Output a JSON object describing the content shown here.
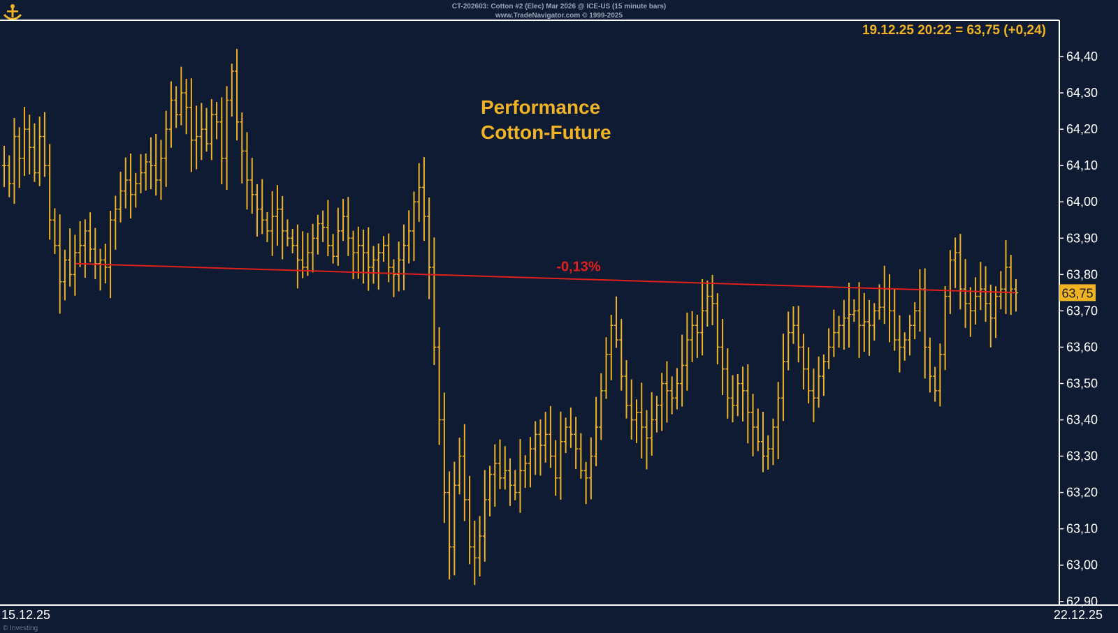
{
  "header": {
    "symbol_line": "CT-202603:  Cotton #2 (Elec) Mar 2026 @ ICE-US  (15 minute bars)",
    "copyright_line": "www.TradeNavigator.com © 1999-2025"
  },
  "last_quote": "19.12.25 20:22 = 63,75 (+0,24)",
  "annotation_title": [
    "Performance",
    "Cotton-Future"
  ],
  "trend_label": "-0,13%",
  "price_tag": "63,75",
  "footer": {
    "date_left": "15.12.25",
    "date_right": "22.12.25",
    "credit": "© Investing"
  },
  "colors": {
    "background": "#0f1a33",
    "bars": "#f0b323",
    "trend_line": "#e0201a",
    "axis": "#ffffff",
    "text": "#ffffff",
    "tag_bg": "#f0b323"
  },
  "chart_data": {
    "type": "line",
    "subtype": "ohlc-bars",
    "title": "",
    "xlabel": "",
    "ylabel": "",
    "ylim": [
      62.89,
      64.5
    ],
    "yticks": [
      "64,40",
      "64,30",
      "64,20",
      "64,10",
      "64,00",
      "63,90",
      "63,80",
      "63,70",
      "63,60",
      "63,50",
      "63,40",
      "63,30",
      "63,20",
      "63,10",
      "63,00",
      "62,90"
    ],
    "ytick_values": [
      64.4,
      64.3,
      64.2,
      64.1,
      64.0,
      63.9,
      63.8,
      63.7,
      63.6,
      63.5,
      63.4,
      63.3,
      63.2,
      63.1,
      63.0,
      62.9
    ],
    "x_range": [
      "15.12.25",
      "22.12.25"
    ],
    "series": [
      {
        "name": "Cotton #2 Mar 2026",
        "close": [
          64.1,
          64.05,
          64.18,
          64.12,
          64.2,
          64.15,
          64.08,
          64.18,
          64.1,
          63.95,
          63.88,
          63.78,
          63.84,
          63.8,
          63.86,
          63.88,
          63.92,
          63.87,
          63.83,
          63.84,
          63.82,
          63.95,
          63.98,
          64.03,
          64.06,
          64.02,
          64.05,
          64.08,
          64.11,
          64.1,
          64.06,
          64.12,
          64.2,
          64.28,
          64.24,
          64.3,
          64.26,
          64.17,
          64.18,
          64.2,
          64.16,
          64.24,
          64.22,
          64.12,
          64.28,
          64.36,
          64.22,
          64.14,
          64.06,
          64.02,
          63.98,
          63.95,
          63.92,
          63.96,
          63.98,
          63.92,
          63.9,
          63.88,
          63.84,
          63.82,
          63.86,
          63.9,
          63.94,
          63.93,
          63.88,
          63.85,
          63.92,
          63.96,
          63.9,
          63.86,
          63.88,
          63.86,
          63.82,
          63.84,
          63.86,
          63.88,
          63.82,
          63.8,
          63.84,
          63.88,
          63.92,
          64.0,
          64.04,
          63.96,
          63.82,
          63.6,
          63.4,
          63.2,
          63.05,
          63.22,
          63.3,
          63.18,
          63.05,
          63.02,
          63.08,
          63.18,
          63.25,
          63.28,
          63.24,
          63.26,
          63.22,
          63.2,
          63.26,
          63.28,
          63.32,
          63.36,
          63.33,
          63.36,
          63.3,
          63.24,
          63.34,
          63.38,
          63.36,
          63.32,
          63.26,
          63.24,
          63.3,
          63.38,
          63.48,
          63.58,
          63.66,
          63.62,
          63.52,
          63.44,
          63.4,
          63.42,
          63.38,
          63.35,
          63.4,
          63.44,
          63.5,
          63.48,
          63.46,
          63.5,
          63.55,
          63.62,
          63.66,
          63.64,
          63.7,
          63.74,
          63.72,
          63.6,
          63.54,
          63.46,
          63.44,
          63.5,
          63.48,
          63.42,
          63.38,
          63.34,
          63.3,
          63.32,
          63.38,
          63.46,
          63.56,
          63.64,
          63.66,
          63.6,
          63.54,
          63.48,
          63.46,
          63.52,
          63.56,
          63.6,
          63.64,
          63.66,
          63.68,
          63.69,
          63.7,
          63.66,
          63.67,
          63.66,
          63.7,
          63.71,
          63.76,
          63.7,
          63.62,
          63.6,
          63.62,
          63.66,
          63.7,
          63.76,
          63.6,
          63.52,
          63.48,
          63.58,
          63.74,
          63.84,
          63.86,
          63.76,
          63.72,
          63.7,
          63.74,
          63.76,
          63.72,
          63.68,
          63.74,
          63.76,
          63.82,
          63.76,
          63.75
        ]
      }
    ],
    "trendline": {
      "from": 63.83,
      "to": 63.75,
      "label": "-0,13%"
    }
  }
}
